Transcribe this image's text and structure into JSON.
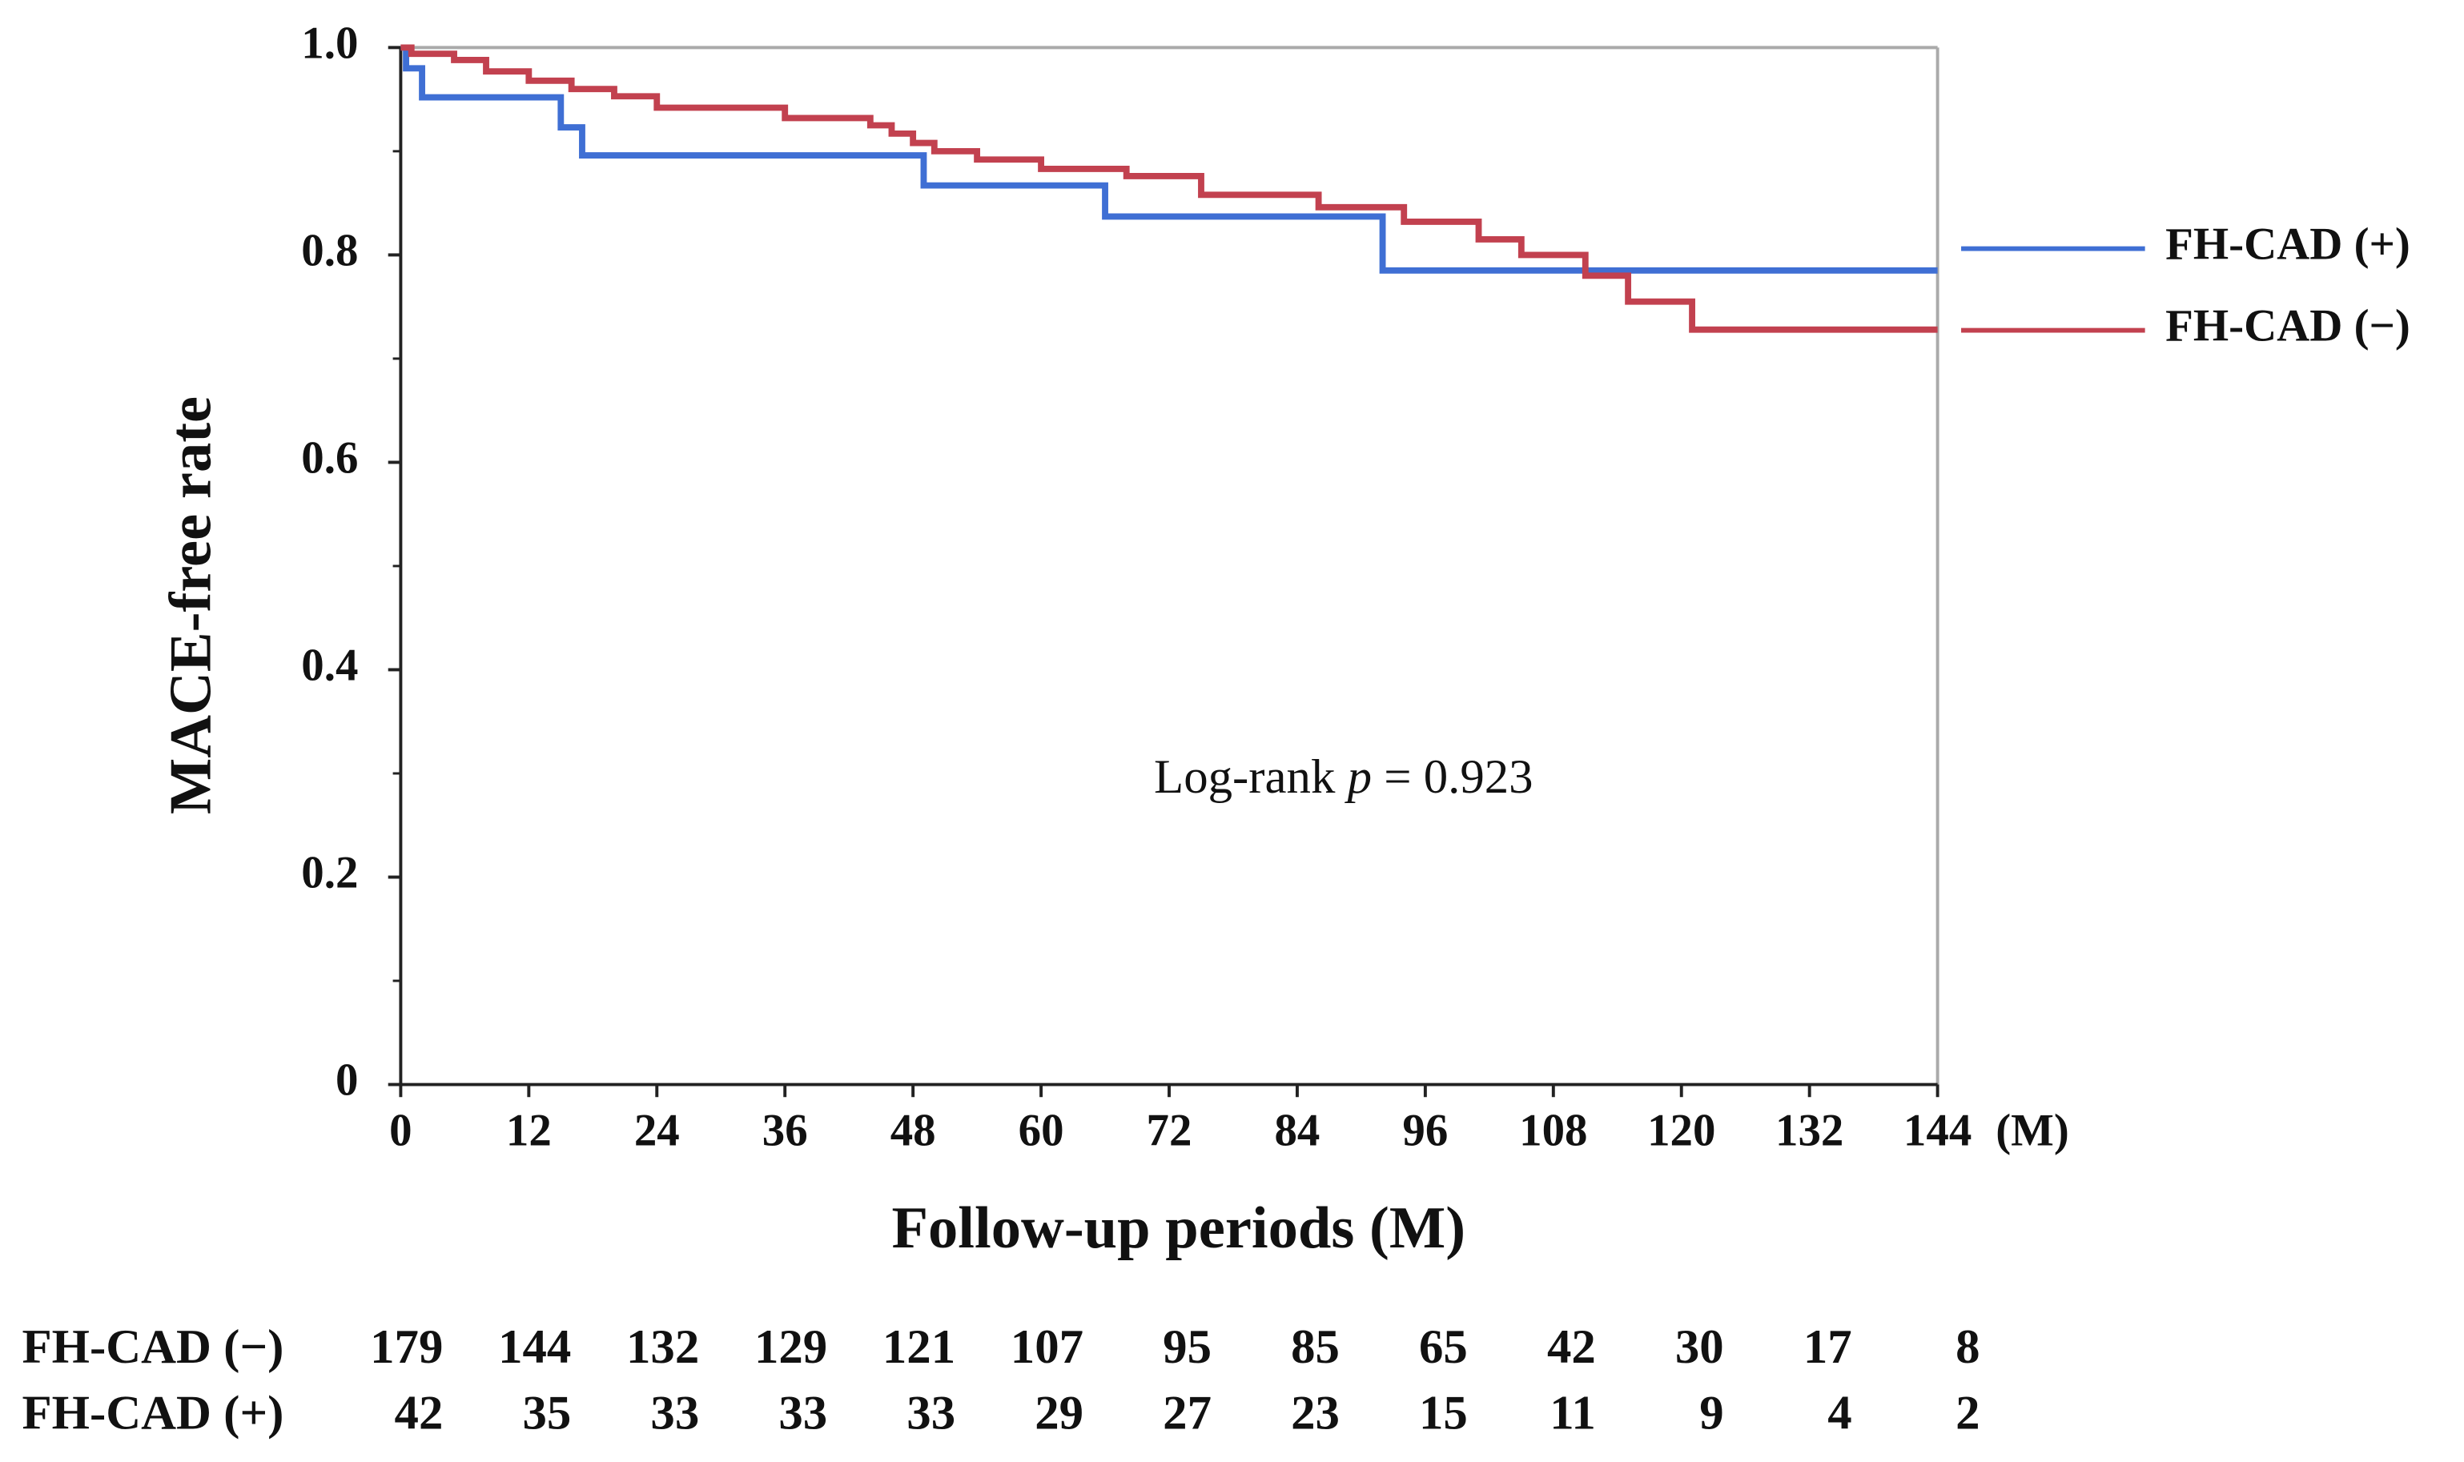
{
  "chart_data": {
    "type": "step",
    "y_label": "MACE-free rate",
    "x_label": "Follow-up periods (M)",
    "x_unit": "(M)",
    "xlim": [
      0,
      144
    ],
    "xticks": [
      0,
      12,
      24,
      36,
      48,
      60,
      72,
      84,
      96,
      108,
      120,
      132,
      144
    ],
    "ylim": [
      0,
      1
    ],
    "yticks": [
      0,
      0.2,
      0.4,
      0.6,
      0.8,
      {
        "value": 1,
        "label": "1.0"
      }
    ],
    "yminorticks": [
      0.1,
      0.3,
      0.5,
      0.7,
      0.9
    ],
    "legend": "right",
    "annotation": {
      "prefix": "Log-rank ",
      "italic": "p",
      "suffix": " = 0.923"
    },
    "series": [
      {
        "name": "FH-CAD (+)",
        "color": "#3f6fd4",
        "x": [
          0,
          0.5,
          2,
          15,
          17,
          49,
          66,
          92,
          144
        ],
        "values": [
          1,
          0.98,
          0.952,
          0.923,
          0.896,
          0.867,
          0.837,
          0.785,
          0.785
        ]
      },
      {
        "name": "FH-CAD (−)",
        "color": "#c2414f",
        "x": [
          0,
          1,
          5,
          8,
          12,
          16,
          20,
          24,
          36,
          44,
          46,
          48,
          50,
          54,
          60,
          68,
          75,
          86,
          94,
          101,
          105,
          111,
          115,
          121,
          144
        ],
        "values": [
          1,
          0.994,
          0.988,
          0.977,
          0.968,
          0.96,
          0.953,
          0.942,
          0.932,
          0.925,
          0.917,
          0.908,
          0.9,
          0.892,
          0.883,
          0.876,
          0.858,
          0.846,
          0.832,
          0.815,
          0.8,
          0.78,
          0.755,
          0.728,
          0.728
        ]
      }
    ],
    "risk_table": {
      "rows": [
        {
          "label": "FH-CAD (−)",
          "values": [
            179,
            144,
            132,
            129,
            121,
            107,
            95,
            85,
            65,
            42,
            30,
            17,
            8
          ]
        },
        {
          "label": "FH-CAD (+)",
          "values": [
            42,
            35,
            33,
            33,
            33,
            29,
            27,
            23,
            15,
            11,
            9,
            4,
            2
          ]
        }
      ]
    }
  }
}
